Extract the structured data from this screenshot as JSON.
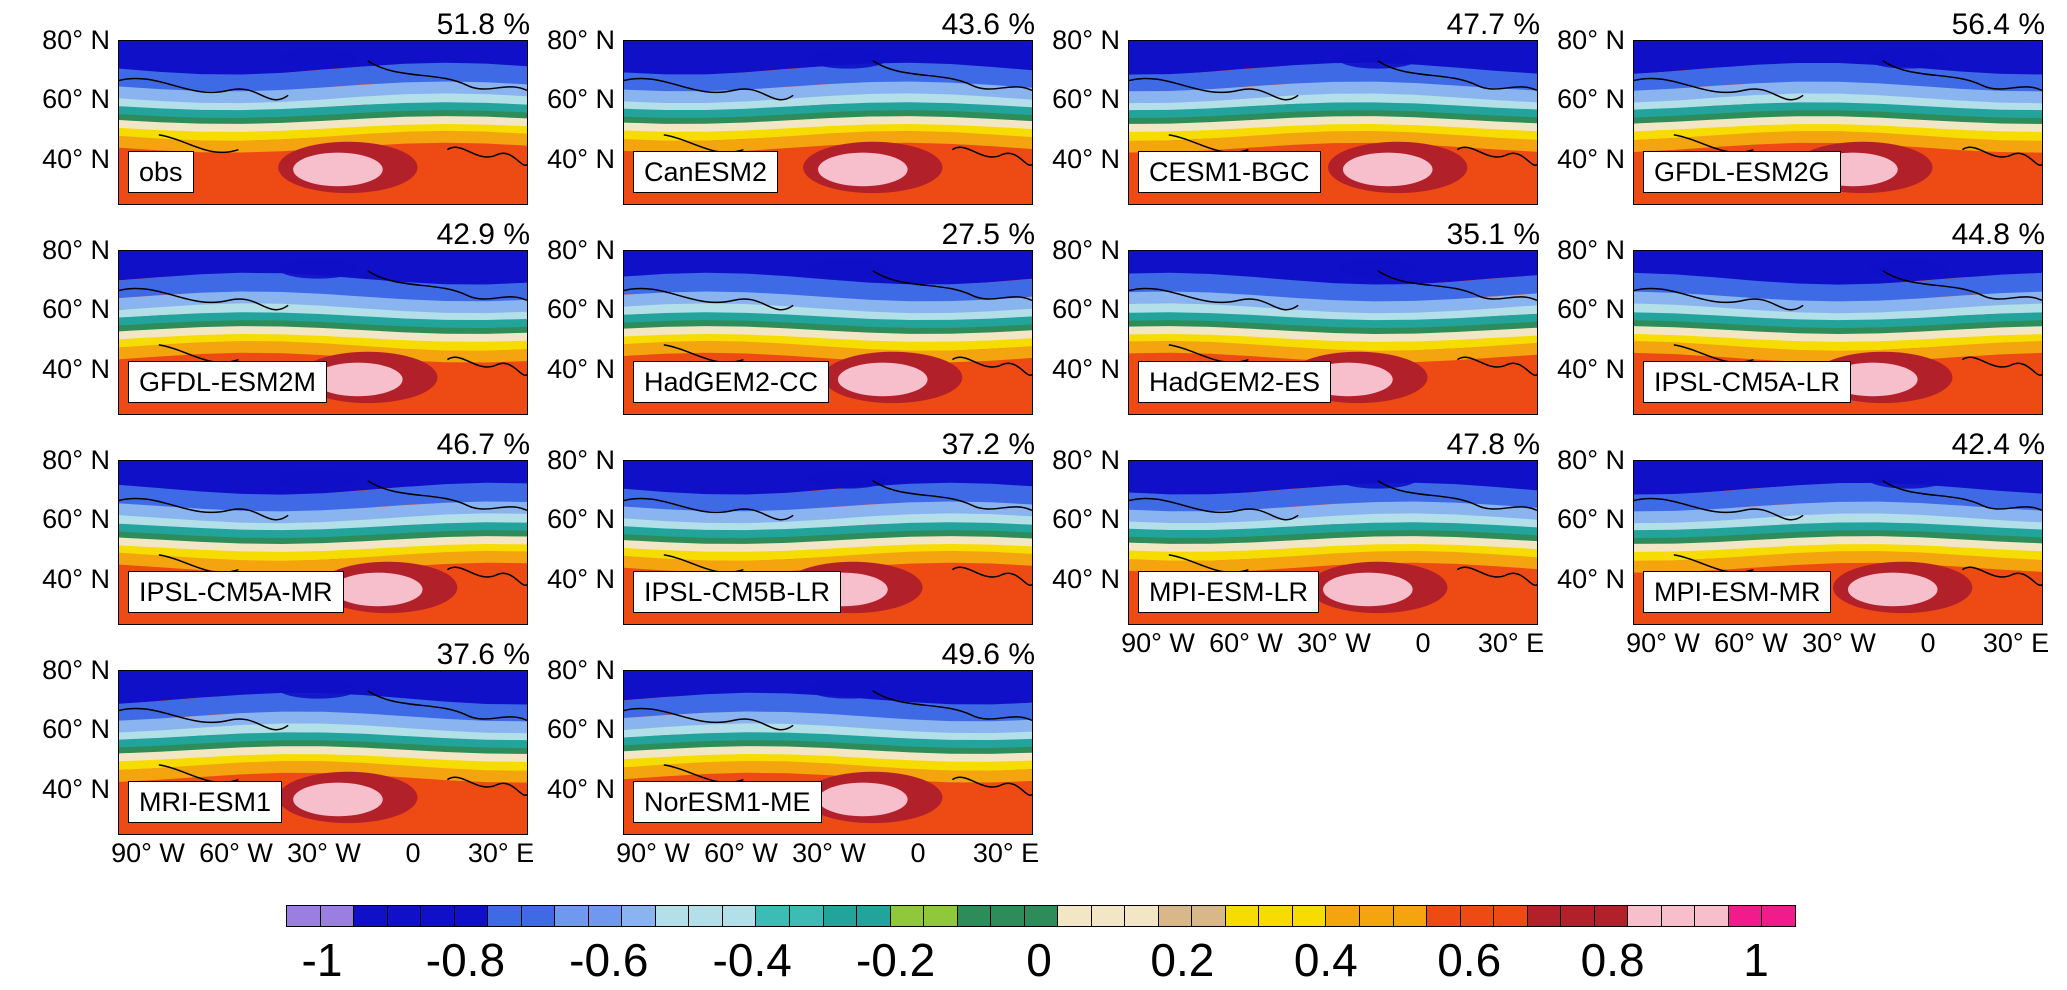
{
  "panels": [
    {
      "name": "obs",
      "percent": "51.8 %",
      "show_lon": false
    },
    {
      "name": "CanESM2",
      "percent": "43.6 %",
      "show_lon": false
    },
    {
      "name": "CESM1-BGC",
      "percent": "47.7 %",
      "show_lon": false
    },
    {
      "name": "GFDL-ESM2G",
      "percent": "56.4 %",
      "show_lon": false
    },
    {
      "name": "GFDL-ESM2M",
      "percent": "42.9 %",
      "show_lon": false
    },
    {
      "name": "HadGEM2-CC",
      "percent": "27.5 %",
      "show_lon": false
    },
    {
      "name": "HadGEM2-ES",
      "percent": "35.1 %",
      "show_lon": false
    },
    {
      "name": "IPSL-CM5A-LR",
      "percent": "44.8 %",
      "show_lon": false
    },
    {
      "name": "IPSL-CM5A-MR",
      "percent": "46.7 %",
      "show_lon": false
    },
    {
      "name": "IPSL-CM5B-LR",
      "percent": "37.2 %",
      "show_lon": false
    },
    {
      "name": "MPI-ESM-LR",
      "percent": "47.8 %",
      "show_lon": true
    },
    {
      "name": "MPI-ESM-MR",
      "percent": "42.4 %",
      "show_lon": true
    },
    {
      "name": "MRI-ESM1",
      "percent": "37.6 %",
      "show_lon": true
    },
    {
      "name": "NorESM1-ME",
      "percent": "49.6 %",
      "show_lon": true
    }
  ],
  "lat_labels": [
    "80° N",
    "60° N",
    "40° N"
  ],
  "lon_labels": [
    "90° W",
    "60° W",
    "30° W",
    "0",
    "30° E"
  ],
  "colorbar": {
    "colors": [
      "#9b7fe0",
      "#9b7fe0",
      "#1010c8",
      "#1010c8",
      "#1010c8",
      "#1010c8",
      "#3f6ae6",
      "#3f6ae6",
      "#6f98ee",
      "#6f98ee",
      "#8ab4f0",
      "#b2dfe8",
      "#b2dfe8",
      "#b2dfe8",
      "#3cbcb4",
      "#3cbcb4",
      "#22a39b",
      "#22a39b",
      "#90c83c",
      "#90c83c",
      "#2e8c5a",
      "#2e8c5a",
      "#2e8c5a",
      "#f2e6c4",
      "#f2e6c4",
      "#f2e6c4",
      "#d8b888",
      "#d8b888",
      "#f6dc00",
      "#f6dc00",
      "#f6dc00",
      "#f3a40e",
      "#f3a40e",
      "#f3a40e",
      "#ee4a14",
      "#ee4a14",
      "#ee4a14",
      "#b2202a",
      "#b2202a",
      "#b2202a",
      "#f7bfcb",
      "#f7bfcb",
      "#f7bfcb",
      "#f01c8c",
      "#f01c8c"
    ],
    "labels": [
      "-1",
      "-0.8",
      "-0.6",
      "-0.4",
      "-0.2",
      "0",
      "0.2",
      "0.4",
      "0.6",
      "0.8",
      "1"
    ]
  },
  "map_colors": {
    "deep_blue": "#1010c8",
    "blue": "#3f6ae6",
    "light_blue": "#8ab4f0",
    "pale_blue": "#b2dfe8",
    "teal": "#22a39b",
    "green": "#2e8c5a",
    "cream": "#f2e6c4",
    "yellow": "#f6dc00",
    "orange": "#f3a40e",
    "red_orange": "#ee4a14",
    "dark_red": "#b2202a",
    "pink": "#f7bfcb",
    "lavender": "#9b7fe0"
  }
}
